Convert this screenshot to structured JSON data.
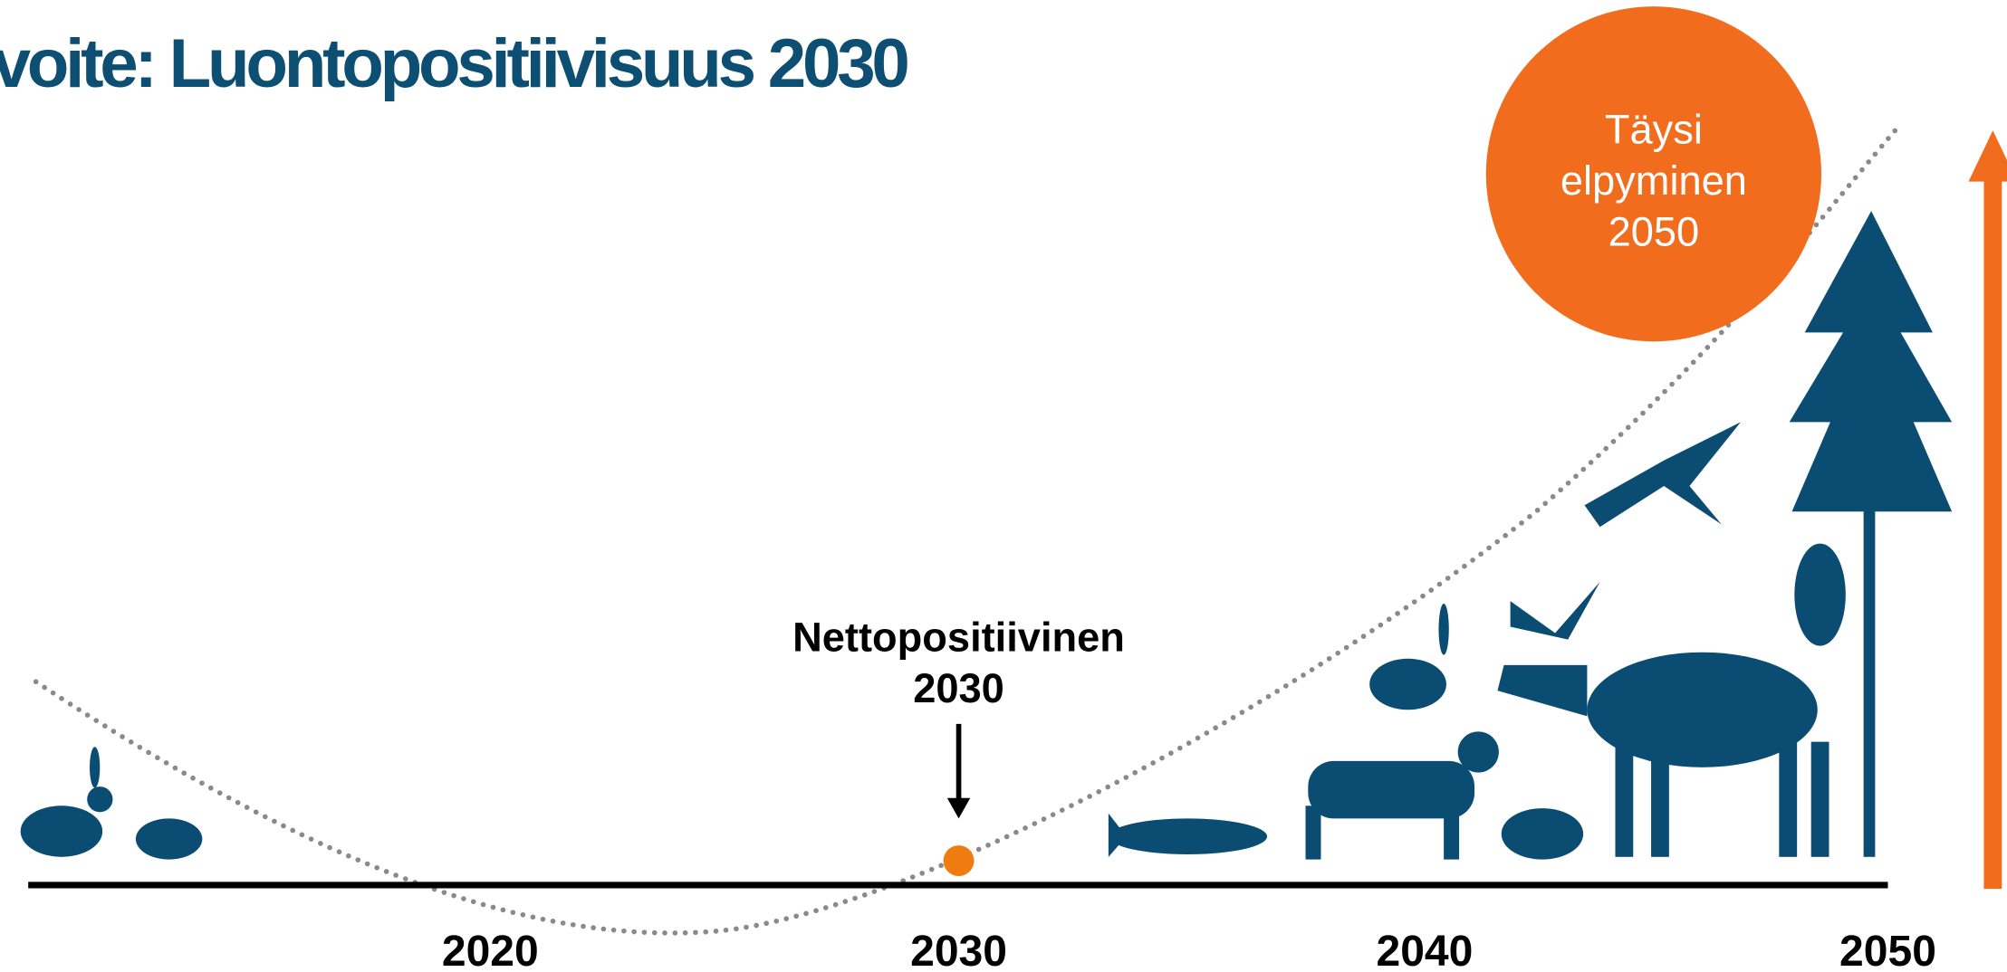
{
  "header": {
    "title": "voite: Luontopositiivisuus 2030"
  },
  "goal": {
    "lines": [
      "Täysi",
      "elpyminen",
      "2050"
    ]
  },
  "annotation": {
    "lines": [
      "Nettopositiivinen",
      "2030"
    ]
  },
  "axis": {
    "labels": [
      "2020",
      "2030",
      "2040",
      "2050"
    ]
  }
}
